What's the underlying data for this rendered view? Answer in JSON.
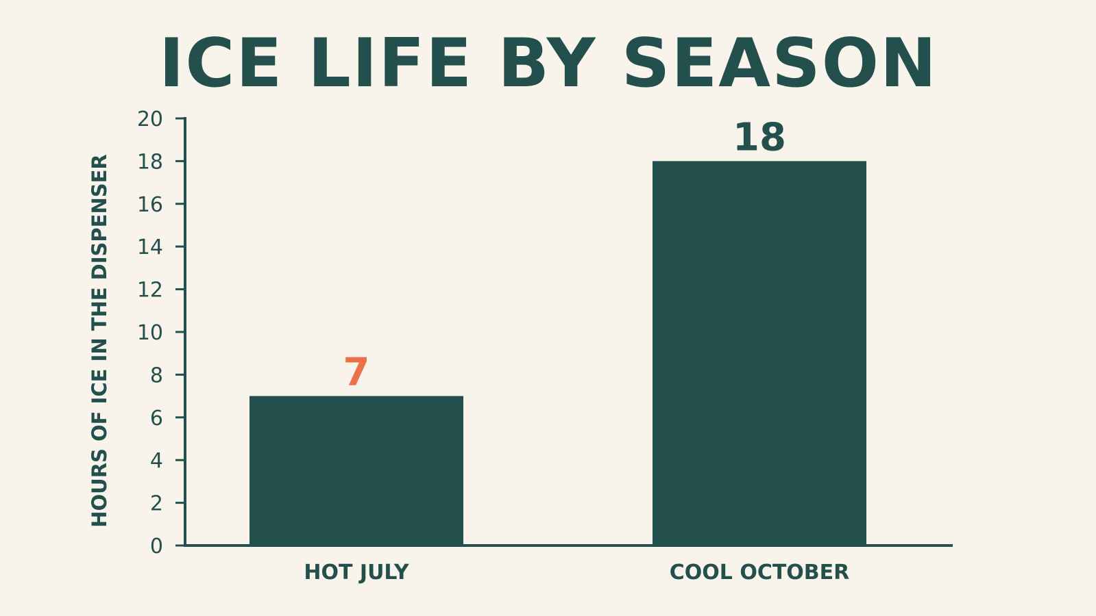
{
  "colors": {
    "background": "#f8f4ec",
    "primary": "#234f4d",
    "highlight": "#ee7049"
  },
  "chart_data": {
    "type": "bar",
    "title": "ICE LIFE BY SEASON",
    "xlabel": "",
    "ylabel": "HOURS OF ICE IN THE DISPENSER",
    "categories": [
      "HOT JULY",
      "COOL OCTOBER"
    ],
    "values": [
      7,
      18
    ],
    "value_labels": [
      "7",
      "18"
    ],
    "highlight_category": "HOT JULY",
    "ylim": [
      0,
      20
    ],
    "yticks": [
      0,
      2,
      4,
      6,
      8,
      10,
      12,
      14,
      16,
      18,
      20
    ],
    "grid": false,
    "legend": "none"
  }
}
